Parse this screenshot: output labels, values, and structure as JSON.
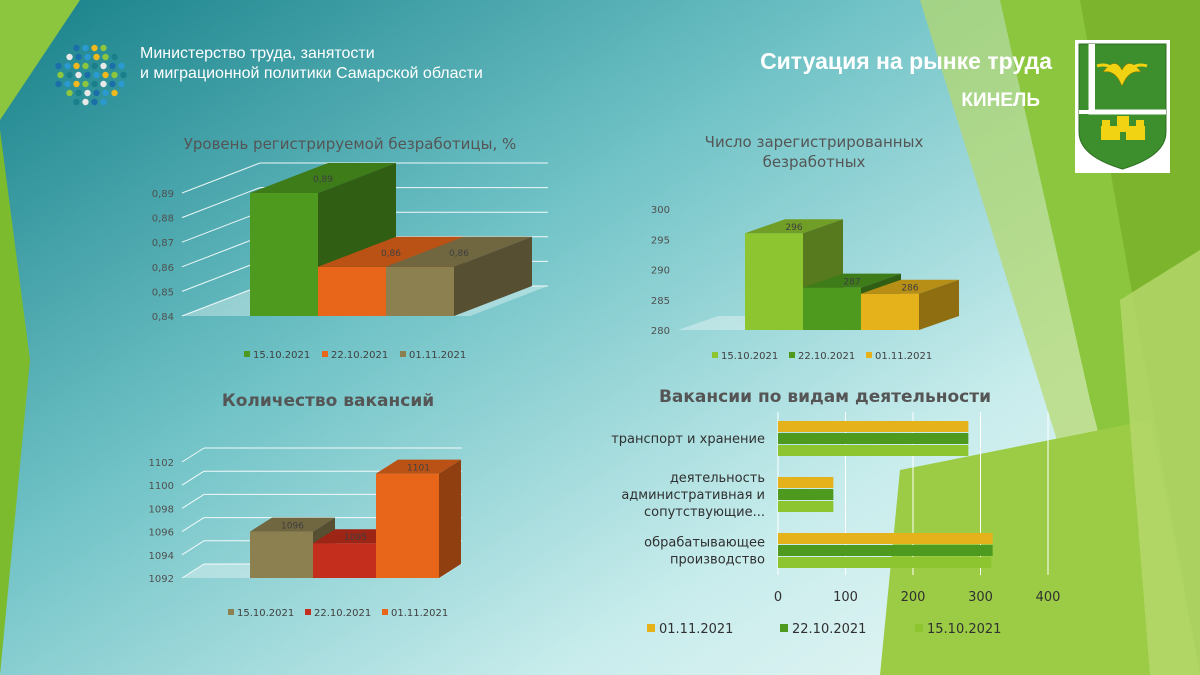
{
  "header": {
    "org_line1": "Министерство труда, занятости",
    "org_line2": "и миграционной политики  Самарской области",
    "title": "Ситуация на рынке труда",
    "city": "КИНЕЛЬ"
  },
  "colors": {
    "teal": "#1a7f8a",
    "green": "#4e9a1f",
    "lime": "#8dc531",
    "orange": "#e8661a",
    "olive": "#8c8050",
    "red": "#c42e1c",
    "gold": "#e5b21c",
    "coat_green": "#3d8f2e",
    "coat_gold": "#f2d313"
  },
  "chart_data": [
    {
      "id": "unemployment_rate",
      "type": "bar",
      "title": "Уровень регистрируемой  безработицы, %",
      "categories": [
        "15.10.2021",
        "22.10.2021",
        "01.11.2021"
      ],
      "values": [
        0.89,
        0.86,
        0.86
      ],
      "value_labels": [
        "0,89",
        "0,86",
        "0,86"
      ],
      "colors": [
        "#4e9a1f",
        "#e8661a",
        "#8c8050"
      ],
      "ylim": [
        0.84,
        0.89
      ],
      "ticks": [
        "0,84",
        "0,85",
        "0,86",
        "0,87",
        "0,88",
        "0,89"
      ],
      "legend": "bottom",
      "grid": true
    },
    {
      "id": "registered_unemployed",
      "type": "bar",
      "title_line1": "Число зарегистрированных",
      "title_line2": "безработных",
      "categories": [
        "15.10.2021",
        "22.10.2021",
        "01.11.2021"
      ],
      "values": [
        296,
        287,
        286
      ],
      "value_labels": [
        "296",
        "287",
        "286"
      ],
      "colors": [
        "#8dc531",
        "#4e9a1f",
        "#e5b21c"
      ],
      "ylim": [
        280,
        300
      ],
      "ticks": [
        "280",
        "285",
        "290",
        "295",
        "300"
      ],
      "legend": "bottom",
      "grid": false
    },
    {
      "id": "vacancies",
      "type": "bar",
      "title": "Количество вакансий",
      "categories": [
        "15.10.2021",
        "22.10.2021",
        "01.11.2021"
      ],
      "values": [
        1096,
        1095,
        1101
      ],
      "value_labels": [
        "1096",
        "1095",
        "1101"
      ],
      "colors": [
        "#8c8050",
        "#c42e1c",
        "#e8661a"
      ],
      "ylim": [
        1092,
        1102
      ],
      "ticks": [
        "1092",
        "1094",
        "1096",
        "1098",
        "1100",
        "1102"
      ],
      "legend": "bottom",
      "grid": true
    },
    {
      "id": "vacancies_by_activity",
      "type": "bar",
      "orientation": "horizontal",
      "title": "Вакансии по видам деятельности",
      "categories": [
        [
          "транспорт и хранение"
        ],
        [
          "деятельность",
          "административная  и",
          "сопутствующие..."
        ],
        [
          "обрабатывающее",
          "производство"
        ]
      ],
      "series": [
        {
          "name": "01.11.2021",
          "color": "#e5b21c",
          "values": [
            282,
            82,
            318
          ]
        },
        {
          "name": "22.10.2021",
          "color": "#4e9a1f",
          "values": [
            282,
            82,
            318
          ]
        },
        {
          "name": "15.10.2021",
          "color": "#8dc531",
          "values": [
            282,
            82,
            316
          ]
        }
      ],
      "xlim": [
        0,
        400
      ],
      "ticks": [
        "0",
        "100",
        "200",
        "300",
        "400"
      ],
      "legend": "bottom",
      "grid": true
    }
  ]
}
